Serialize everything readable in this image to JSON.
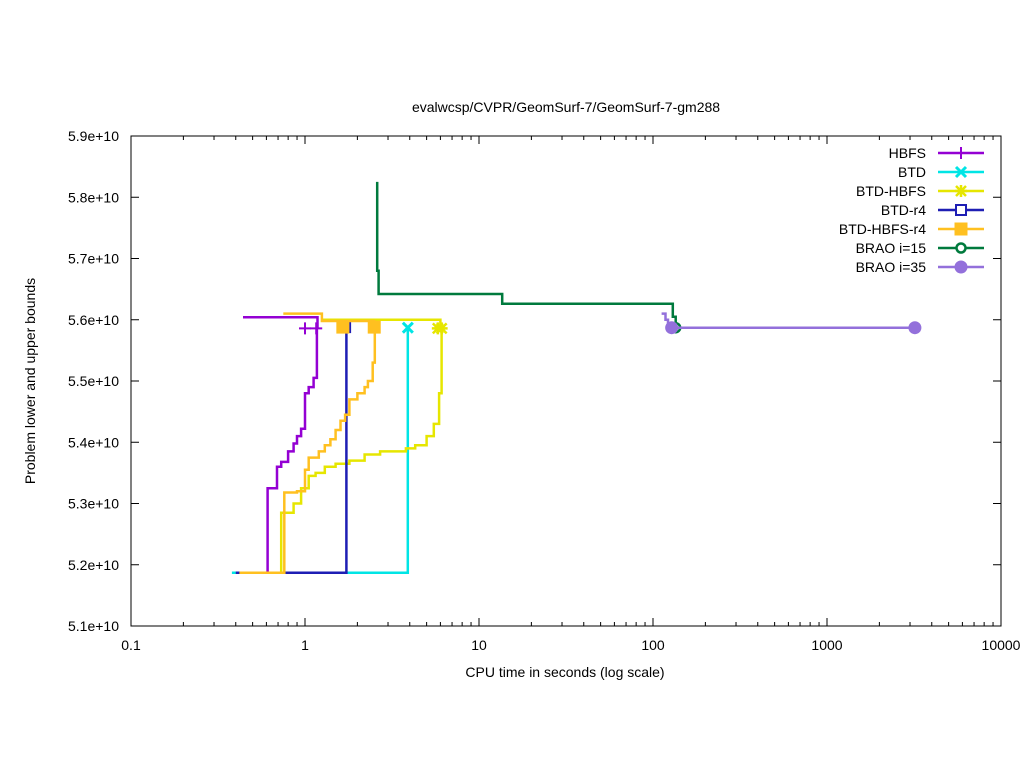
{
  "chart_data": {
    "type": "line",
    "title": "evalwcsp/CVPR/GeomSurf-7/GeomSurf-7-gm288",
    "xlabel": "CPU time in seconds (log scale)",
    "ylabel": "Problem lower and upper bounds",
    "xscale": "log",
    "xlim": [
      0.1,
      10000
    ],
    "ylim": [
      51000000000,
      59000000000
    ],
    "xticks": [
      {
        "value": 0.1,
        "label": "0.1"
      },
      {
        "value": 1,
        "label": "1"
      },
      {
        "value": 10,
        "label": "10"
      },
      {
        "value": 100,
        "label": "100"
      },
      {
        "value": 1000,
        "label": "1000"
      },
      {
        "value": 10000,
        "label": "10000"
      }
    ],
    "yticks": [
      {
        "value": 51000000000,
        "label": "5.1e+10"
      },
      {
        "value": 52000000000,
        "label": "5.2e+10"
      },
      {
        "value": 53000000000,
        "label": "5.3e+10"
      },
      {
        "value": 54000000000,
        "label": "5.4e+10"
      },
      {
        "value": 55000000000,
        "label": "5.5e+10"
      },
      {
        "value": 56000000000,
        "label": "5.6e+10"
      },
      {
        "value": 57000000000,
        "label": "5.7e+10"
      },
      {
        "value": 58000000000,
        "label": "5.8e+10"
      },
      {
        "value": 59000000000,
        "label": "5.9e+10"
      }
    ],
    "grid": false,
    "legend_position": "top-right",
    "series": [
      {
        "name": "HBFS",
        "color": "#9400d3",
        "marker": "plus",
        "lines": [
          [
            [
              0.44,
              56040000000
            ],
            [
              1.18,
              56040000000
            ],
            [
              1.18,
              55860000000
            ]
          ],
          [
            [
              0.61,
              51870000000
            ],
            [
              0.61,
              53250000000
            ],
            [
              0.69,
              53250000000
            ],
            [
              0.69,
              53600000000
            ],
            [
              0.73,
              53600000000
            ],
            [
              0.73,
              53680000000
            ],
            [
              0.8,
              53680000000
            ],
            [
              0.8,
              53850000000
            ],
            [
              0.86,
              53850000000
            ],
            [
              0.86,
              53980000000
            ],
            [
              0.9,
              53980000000
            ],
            [
              0.9,
              54100000000
            ],
            [
              0.95,
              54100000000
            ],
            [
              0.95,
              54220000000
            ],
            [
              1.0,
              54220000000
            ],
            [
              1.0,
              54800000000
            ],
            [
              1.05,
              54800000000
            ],
            [
              1.05,
              54900000000
            ],
            [
              1.12,
              54900000000
            ],
            [
              1.12,
              55050000000
            ],
            [
              1.17,
              55050000000
            ],
            [
              1.17,
              55860000000
            ]
          ]
        ],
        "markers": [
          [
            1.0,
            55860000000
          ],
          [
            1.16,
            55860000000
          ]
        ]
      },
      {
        "name": "BTD",
        "color": "#00e5e5",
        "marker": "x",
        "lines": [
          [
            [
              0.38,
              51870000000
            ],
            [
              3.9,
              51870000000
            ],
            [
              3.9,
              55870000000
            ]
          ]
        ],
        "markers": [
          [
            3.9,
            55870000000
          ]
        ]
      },
      {
        "name": "BTD-HBFS",
        "color": "#e6e600",
        "marker": "star",
        "lines": [
          [
            [
              1.25,
              56000000000
            ],
            [
              6.0,
              56000000000
            ],
            [
              6.0,
              55860000000
            ]
          ],
          [
            [
              0.73,
              51870000000
            ],
            [
              0.73,
              52850000000
            ],
            [
              0.86,
              52850000000
            ],
            [
              0.86,
              53000000000
            ],
            [
              0.95,
              53000000000
            ],
            [
              0.95,
              53250000000
            ],
            [
              1.05,
              53250000000
            ],
            [
              1.05,
              53450000000
            ],
            [
              1.15,
              53450000000
            ],
            [
              1.15,
              53500000000
            ],
            [
              1.3,
              53500000000
            ],
            [
              1.3,
              53600000000
            ],
            [
              1.5,
              53600000000
            ],
            [
              1.5,
              53650000000
            ],
            [
              1.8,
              53650000000
            ],
            [
              1.8,
              53700000000
            ],
            [
              2.2,
              53700000000
            ],
            [
              2.2,
              53800000000
            ],
            [
              2.7,
              53800000000
            ],
            [
              2.7,
              53850000000
            ],
            [
              3.8,
              53850000000
            ],
            [
              3.8,
              53900000000
            ],
            [
              4.3,
              53900000000
            ],
            [
              4.3,
              53950000000
            ],
            [
              5.0,
              53950000000
            ],
            [
              5.0,
              54100000000
            ],
            [
              5.5,
              54100000000
            ],
            [
              5.5,
              54300000000
            ],
            [
              5.9,
              54300000000
            ],
            [
              5.9,
              54800000000
            ],
            [
              6.1,
              54800000000
            ],
            [
              6.1,
              55860000000
            ]
          ]
        ],
        "markers": [
          [
            5.8,
            55860000000
          ],
          [
            6.1,
            55860000000
          ]
        ]
      },
      {
        "name": "BTD-r4",
        "color": "#1e1eb4",
        "marker": "square-open",
        "lines": [
          [
            [
              0.4,
              51870000000
            ],
            [
              1.73,
              51870000000
            ],
            [
              1.73,
              55950000000
            ]
          ],
          [
            [
              1.6,
              55880000000
            ],
            [
              1.73,
              55880000000
            ]
          ]
        ],
        "markers": [
          [
            1.7,
            55880000000
          ]
        ]
      },
      {
        "name": "BTD-HBFS-r4",
        "color": "#ffc020",
        "marker": "square-filled",
        "lines": [
          [
            [
              0.75,
              56100000000
            ],
            [
              1.25,
              56100000000
            ],
            [
              1.25,
              55980000000
            ],
            [
              2.5,
              55980000000
            ],
            [
              2.5,
              55880000000
            ]
          ],
          [
            [
              0.42,
              51870000000
            ],
            [
              0.76,
              51870000000
            ],
            [
              0.76,
              53180000000
            ],
            [
              0.9,
              53180000000
            ],
            [
              0.9,
              53200000000
            ],
            [
              1.0,
              53200000000
            ],
            [
              1.0,
              53550000000
            ],
            [
              1.05,
              53550000000
            ],
            [
              1.05,
              53750000000
            ],
            [
              1.2,
              53750000000
            ],
            [
              1.2,
              53850000000
            ],
            [
              1.3,
              53850000000
            ],
            [
              1.3,
              53950000000
            ],
            [
              1.4,
              53950000000
            ],
            [
              1.4,
              54050000000
            ],
            [
              1.5,
              54050000000
            ],
            [
              1.5,
              54200000000
            ],
            [
              1.6,
              54200000000
            ],
            [
              1.6,
              54350000000
            ],
            [
              1.7,
              54350000000
            ],
            [
              1.7,
              54450000000
            ],
            [
              1.8,
              54450000000
            ],
            [
              1.8,
              54700000000
            ],
            [
              2.0,
              54700000000
            ],
            [
              2.0,
              54800000000
            ],
            [
              2.2,
              54800000000
            ],
            [
              2.2,
              54900000000
            ],
            [
              2.3,
              54900000000
            ],
            [
              2.3,
              55000000000
            ],
            [
              2.45,
              55000000000
            ],
            [
              2.45,
              55300000000
            ],
            [
              2.52,
              55300000000
            ],
            [
              2.52,
              55880000000
            ]
          ]
        ],
        "markers": [
          [
            1.65,
            55880000000
          ],
          [
            2.5,
            55880000000
          ]
        ]
      },
      {
        "name": "BRAO i=15",
        "color": "#007a3d",
        "marker": "circle-open",
        "lines": [
          [
            [
              2.6,
              58250000000
            ],
            [
              2.6,
              56800000000
            ],
            [
              2.65,
              56800000000
            ],
            [
              2.65,
              56420000000
            ],
            [
              13.6,
              56420000000
            ],
            [
              13.6,
              56260000000
            ],
            [
              130,
              56260000000
            ],
            [
              130,
              56050000000
            ],
            [
              135,
              56050000000
            ],
            [
              135,
              55870000000
            ]
          ]
        ],
        "markers": [
          [
            135,
            55870000000
          ]
        ]
      },
      {
        "name": "BRAO i=35",
        "color": "#9370db",
        "marker": "circle-filled",
        "lines": [
          [
            [
              112,
              56100000000
            ],
            [
              118,
              56100000000
            ],
            [
              118,
              56000000000
            ],
            [
              122,
              56000000000
            ],
            [
              122,
              55930000000
            ],
            [
              127,
              55930000000
            ],
            [
              127,
              55870000000
            ],
            [
              3200,
              55870000000
            ]
          ]
        ],
        "markers": [
          [
            128,
            55870000000
          ],
          [
            3200,
            55870000000
          ]
        ]
      }
    ]
  }
}
